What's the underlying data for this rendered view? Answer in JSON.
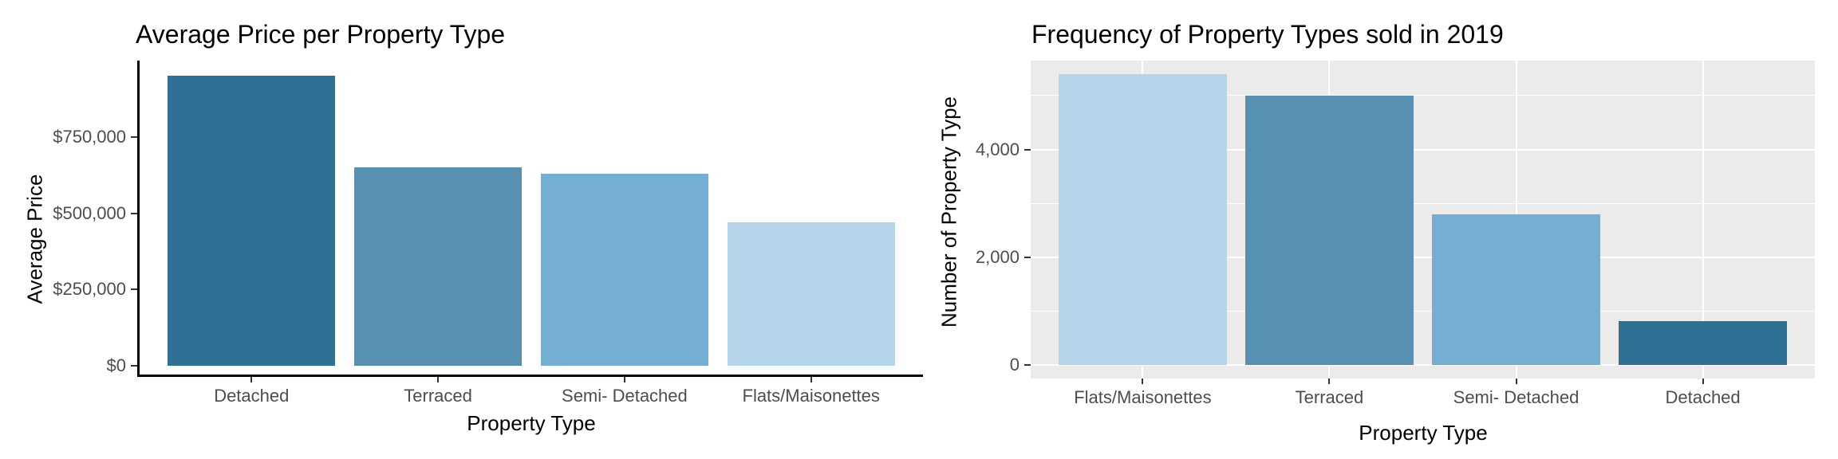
{
  "chart_data": [
    {
      "type": "bar",
      "title": "Average Price per Property Type",
      "xlabel": "Property Type",
      "ylabel": "Average Price",
      "categories": [
        "Detached",
        "Terraced",
        "Semi- Detached",
        "Flats/Maisonettes"
      ],
      "values": [
        950000,
        650000,
        630000,
        470000
      ],
      "bar_colors": [
        "#2E7194",
        "#5890B1",
        "#74AFD3",
        "#B5D6EA"
      ],
      "ylim": [
        0,
        1000000
      ],
      "yticks": [
        {
          "value": 0,
          "label": "$0"
        },
        {
          "value": 250000,
          "label": "$250,000"
        },
        {
          "value": 500000,
          "label": "$500,000"
        },
        {
          "value": 750000,
          "label": "$750,000"
        }
      ],
      "minor_yticks": [],
      "grid": false,
      "legend": "none",
      "panel_bg": "#FFFFFF",
      "axis_line_color": "#000000",
      "tick_color": "#333333",
      "tick_label_color": "#4D4D4D",
      "title_color": "#000000"
    },
    {
      "type": "bar",
      "title": "Frequency of Property Types sold in 2019",
      "xlabel": "Property Type",
      "ylabel": "Number of Property Type",
      "categories": [
        "Flats/Maisonettes",
        "Terraced",
        "Semi- Detached",
        "Detached"
      ],
      "values": [
        5400,
        5000,
        2800,
        820
      ],
      "bar_colors": [
        "#B5D6EA",
        "#5890B1",
        "#74AFD3",
        "#2E7194"
      ],
      "ylim": [
        0,
        5650
      ],
      "yticks": [
        {
          "value": 0,
          "label": "0"
        },
        {
          "value": 2000,
          "label": "2,000"
        },
        {
          "value": 4000,
          "label": "4,000"
        }
      ],
      "minor_yticks": [
        1000,
        3000,
        5000
      ],
      "grid": true,
      "legend": "none",
      "panel_bg": "#EBEBEB",
      "grid_color": "#FFFFFF",
      "tick_color": "#333333",
      "tick_label_color": "#4D4D4D",
      "title_color": "#000000"
    }
  ]
}
